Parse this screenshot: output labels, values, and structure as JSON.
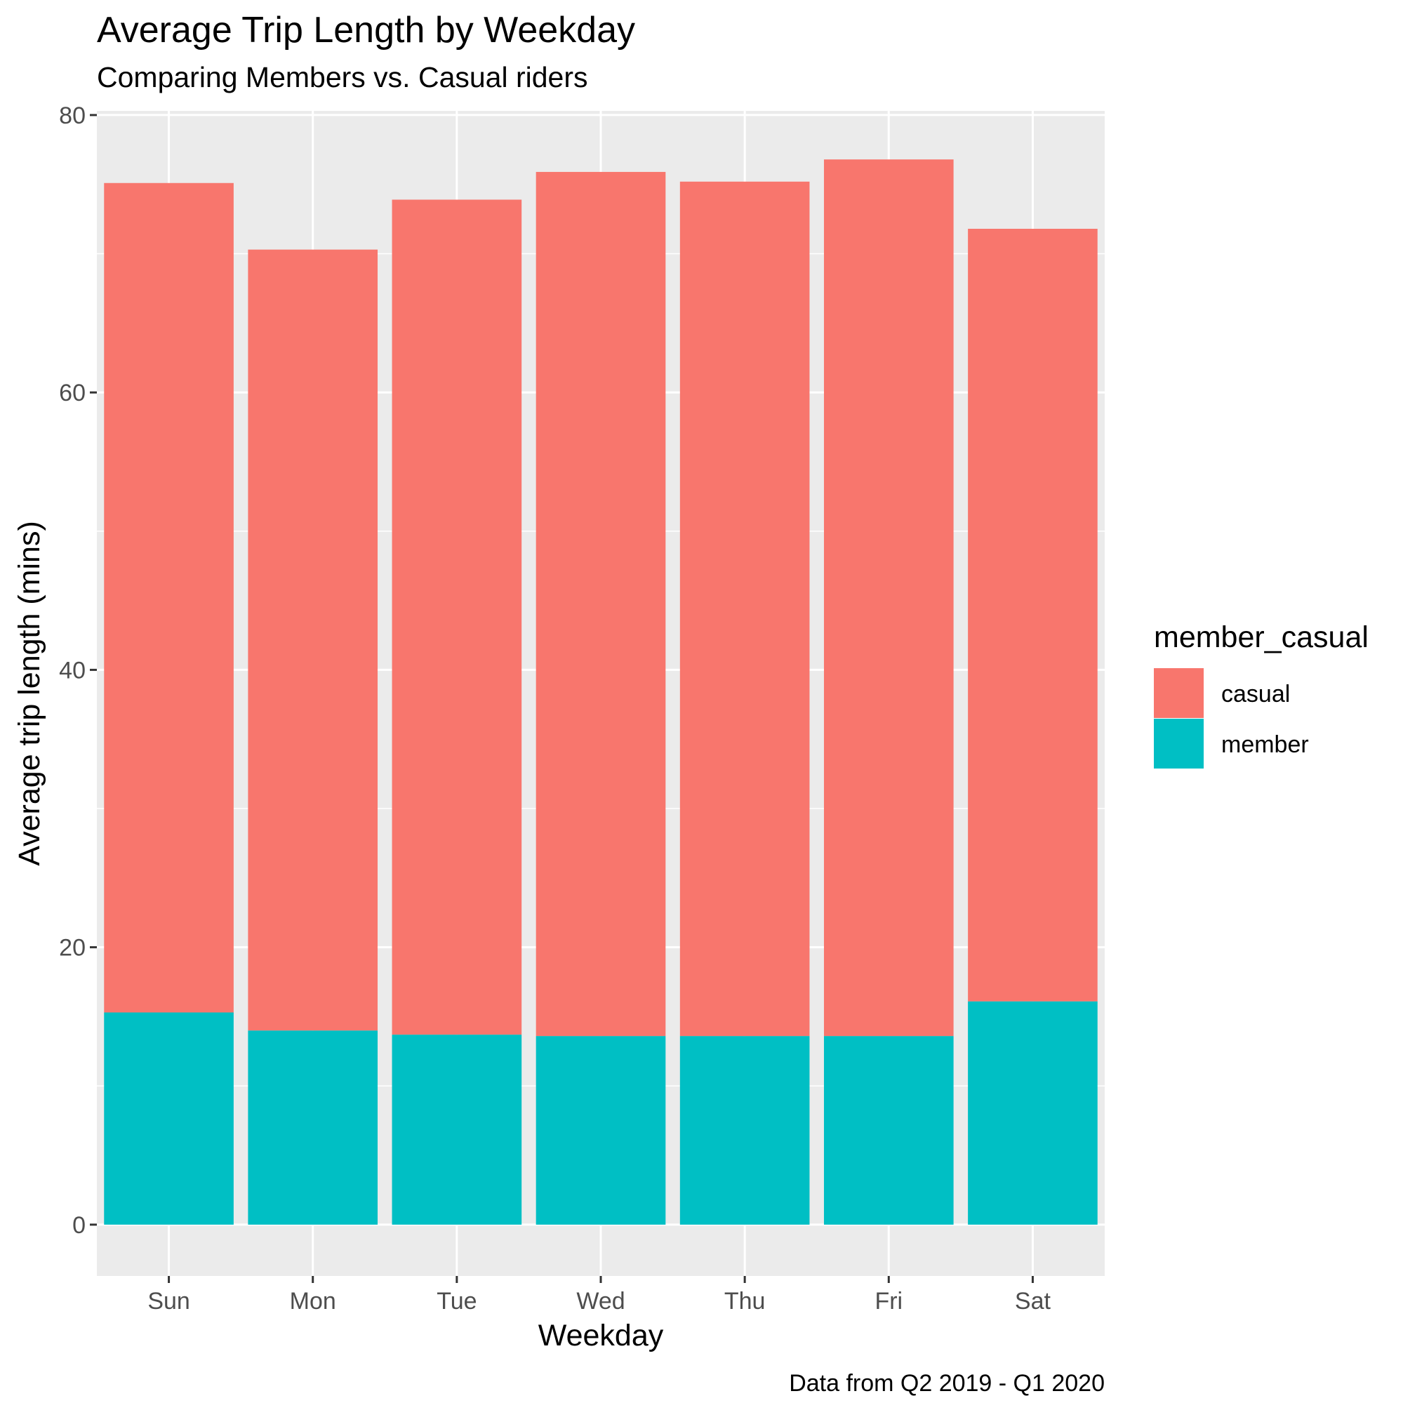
{
  "chart_data": {
    "type": "bar",
    "stacked": true,
    "title": "Average Trip Length by Weekday",
    "subtitle": "Comparing Members vs. Casual riders",
    "xlabel": "Weekday",
    "ylabel": "Average trip length (mins)",
    "caption": "Data from Q2 2019 - Q1 2020",
    "categories": [
      "Sun",
      "Mon",
      "Tue",
      "Wed",
      "Thu",
      "Fri",
      "Sat"
    ],
    "series": [
      {
        "name": "member",
        "color": "#00BFC4",
        "values": [
          15.3,
          14.0,
          13.7,
          13.6,
          13.6,
          13.6,
          16.1
        ]
      },
      {
        "name": "casual",
        "color": "#F8766D",
        "values": [
          59.8,
          56.3,
          60.2,
          62.3,
          61.6,
          63.2,
          55.7
        ]
      }
    ],
    "ylim": [
      -3.7,
      80.3
    ],
    "yticks": [
      0,
      20,
      40,
      60,
      80
    ],
    "grid": true,
    "legend": {
      "title": "member_casual",
      "position": "right",
      "entries": [
        {
          "label": "casual",
          "color": "#F8766D"
        },
        {
          "label": "member",
          "color": "#00BFC4"
        }
      ]
    }
  }
}
